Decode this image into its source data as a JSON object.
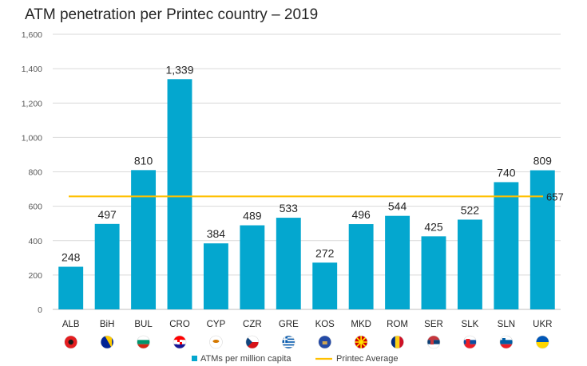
{
  "chart_data": {
    "type": "bar",
    "title": "ATM penetration per Printec country – 2019",
    "categories": [
      "ALB",
      "BiH",
      "BUL",
      "CRO",
      "CYP",
      "CZR",
      "GRE",
      "KOS",
      "MKD",
      "ROM",
      "SER",
      "SLK",
      "SLN",
      "UKR"
    ],
    "series": [
      {
        "name": "ATMs per million capita",
        "values": [
          248,
          497,
          810,
          1339,
          384,
          489,
          533,
          272,
          496,
          544,
          425,
          522,
          740,
          809
        ],
        "color": "#04a7cf"
      }
    ],
    "lines": [
      {
        "name": "Printec Average",
        "value": 657,
        "label": "657",
        "color": "#ffc000"
      }
    ],
    "ylim": [
      0,
      1600
    ],
    "yticks": [
      0,
      200,
      400,
      600,
      800,
      1000,
      1200,
      1400,
      1600
    ],
    "ytick_labels": [
      "0",
      "200",
      "400",
      "600",
      "800",
      "1,000",
      "1,200",
      "1,400",
      "1,600"
    ],
    "data_labels": [
      "248",
      "497",
      "810",
      "1,339",
      "384",
      "489",
      "533",
      "272",
      "496",
      "544",
      "425",
      "522",
      "740",
      "809"
    ],
    "grid": true,
    "legend": "bottom",
    "flag_icons": [
      "albania-flag-icon",
      "bosnia-flag-icon",
      "bulgaria-flag-icon",
      "croatia-flag-icon",
      "cyprus-flag-icon",
      "czech-flag-icon",
      "greece-flag-icon",
      "kosovo-flag-icon",
      "north-macedonia-flag-icon",
      "romania-flag-icon",
      "serbia-flag-icon",
      "slovakia-flag-icon",
      "slovenia-flag-icon",
      "ukraine-flag-icon"
    ]
  }
}
